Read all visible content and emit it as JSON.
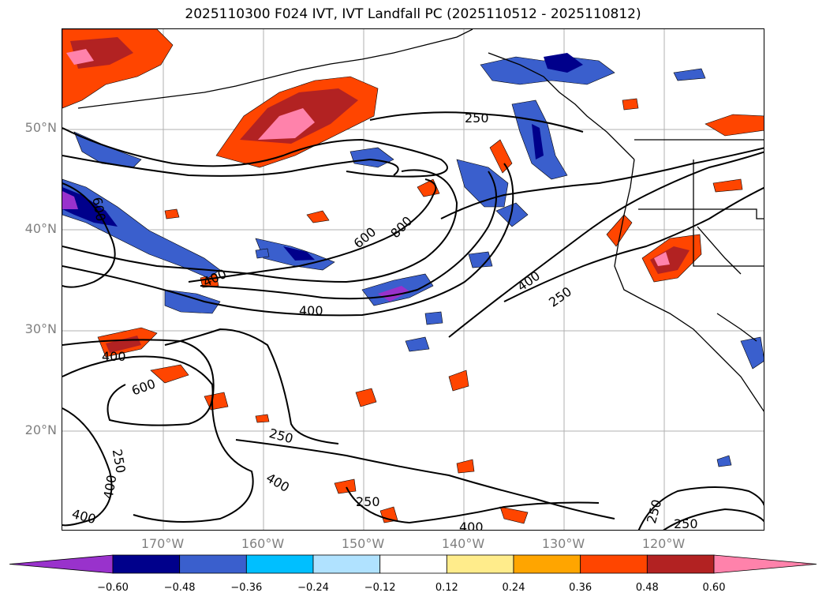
{
  "title": "2025110300 F024 IVT, IVT Landfall PC (2025110512 - 2025110812)",
  "axes": {
    "lat_labels": [
      "50°N",
      "40°N",
      "30°N",
      "20°N"
    ],
    "lon_labels": [
      "170°W",
      "160°W",
      "150°W",
      "140°W",
      "130°W",
      "120°W"
    ]
  },
  "contour_labels": [
    "250",
    "600",
    "400",
    "600",
    "800",
    "400",
    "400",
    "250",
    "400",
    "600",
    "250",
    "250",
    "400",
    "400",
    "400",
    "250",
    "400",
    "250",
    "250"
  ],
  "colorbar": {
    "colors": [
      "#9932CC",
      "#00008B",
      "#3A5FCD",
      "#00BFFF",
      "#B0E2FF",
      "#FFFFFF",
      "#FFEC8B",
      "#FFA500",
      "#FF4500",
      "#B22222",
      "#FF82AB"
    ],
    "tick_labels": [
      "−0.60",
      "−0.48",
      "−0.36",
      "−0.24",
      "−0.12",
      "0.12",
      "0.24",
      "0.36",
      "0.48",
      "0.60"
    ]
  }
}
